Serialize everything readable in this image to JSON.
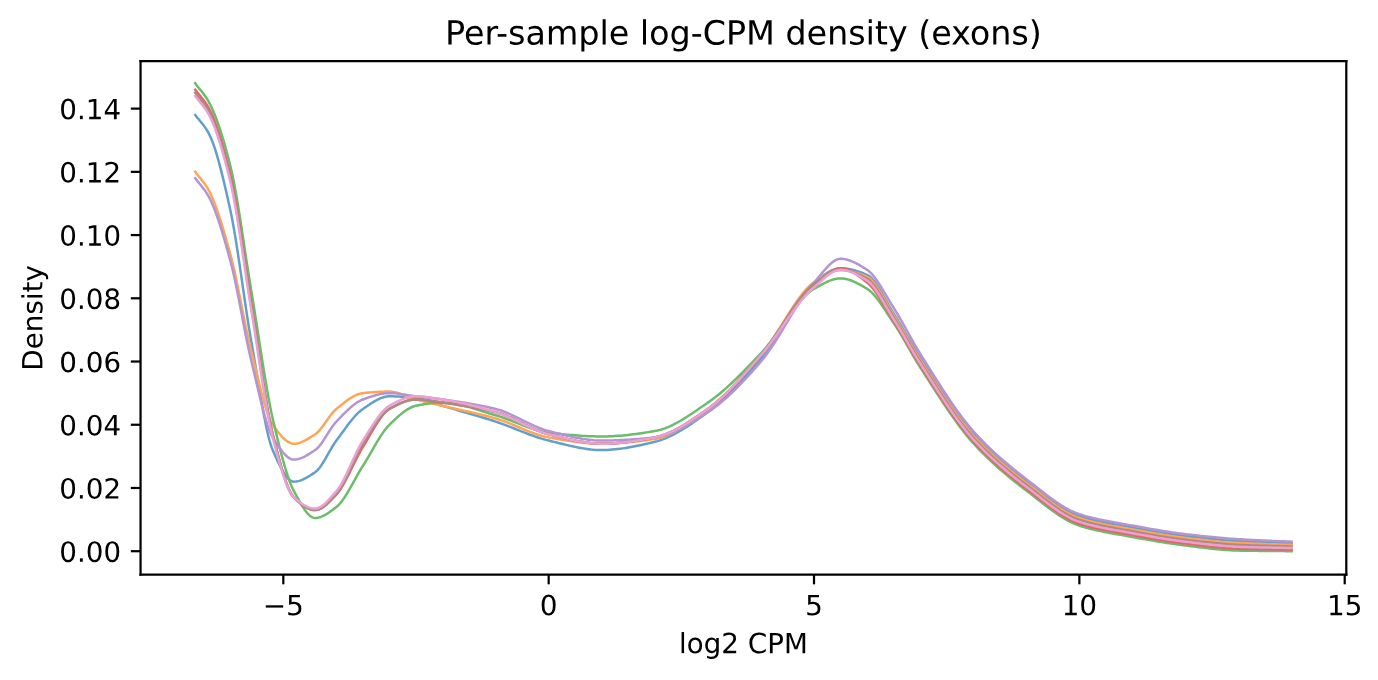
{
  "chart_data": {
    "type": "line",
    "title": "Per-sample log-CPM density (exons)",
    "xlabel": "log2 CPM",
    "ylabel": "Density",
    "x": [
      -6.66,
      -6.4,
      -6.0,
      -5.6,
      -5.2,
      -4.8,
      -4.4,
      -4.0,
      -3.5,
      -3.0,
      -2.5,
      -2.0,
      -1.0,
      0,
      1,
      2,
      3,
      4,
      5,
      5.5,
      6,
      6.5,
      7,
      8,
      9,
      10,
      11,
      12,
      13,
      14
    ],
    "series": [
      {
        "color": "#629fca",
        "values": [
          0.138,
          0.132,
          0.108,
          0.066,
          0.032,
          0.022,
          0.025,
          0.035,
          0.045,
          0.049,
          0.0485,
          0.046,
          0.041,
          0.035,
          0.032,
          0.0346,
          0.044,
          0.061,
          0.085,
          0.0895,
          0.0874,
          0.0752,
          0.0612,
          0.0372,
          0.0222,
          0.0111,
          0.0075,
          0.0048,
          0.0032,
          0.0025
        ]
      },
      {
        "color": "#ffa556",
        "values": [
          0.12,
          0.114,
          0.094,
          0.063,
          0.04,
          0.034,
          0.037,
          0.045,
          0.05,
          0.0505,
          0.048,
          0.046,
          0.042,
          0.036,
          0.034,
          0.0355,
          0.045,
          0.062,
          0.085,
          0.089,
          0.0868,
          0.0746,
          0.0606,
          0.0366,
          0.0216,
          0.0105,
          0.0069,
          0.0042,
          0.0026,
          0.002
        ]
      },
      {
        "color": "#6bbc6b",
        "values": [
          0.148,
          0.142,
          0.122,
          0.082,
          0.042,
          0.019,
          0.0105,
          0.014,
          0.027,
          0.04,
          0.046,
          0.047,
          0.043,
          0.0375,
          0.0363,
          0.038,
          0.047,
          0.0626,
          0.083,
          0.0863,
          0.083,
          0.0722,
          0.0582,
          0.0342,
          0.0192,
          0.0081,
          0.0045,
          0.0018,
          0.0002,
          0.0
        ]
      },
      {
        "color": "#e26768",
        "values": [
          0.146,
          0.14,
          0.119,
          0.078,
          0.037,
          0.017,
          0.013,
          0.018,
          0.033,
          0.045,
          0.048,
          0.047,
          0.044,
          0.037,
          0.034,
          0.036,
          0.045,
          0.062,
          0.084,
          0.0895,
          0.085,
          0.0728,
          0.0588,
          0.0348,
          0.0198,
          0.0087,
          0.0051,
          0.0024,
          0.0008,
          0.0005
        ]
      },
      {
        "color": "#b495d1",
        "values": [
          0.118,
          0.112,
          0.092,
          0.06,
          0.036,
          0.029,
          0.032,
          0.041,
          0.048,
          0.05,
          0.049,
          0.048,
          0.045,
          0.038,
          0.035,
          0.036,
          0.044,
          0.06,
          0.085,
          0.0925,
          0.089,
          0.077,
          0.0625,
          0.038,
          0.0228,
          0.0117,
          0.0081,
          0.0054,
          0.0038,
          0.003
        ]
      },
      {
        "color": "#ae8981",
        "values": [
          0.145,
          0.139,
          0.118,
          0.077,
          0.037,
          0.017,
          0.013,
          0.018,
          0.034,
          0.045,
          0.048,
          0.047,
          0.044,
          0.037,
          0.034,
          0.036,
          0.045,
          0.062,
          0.0845,
          0.089,
          0.0862,
          0.074,
          0.06,
          0.036,
          0.021,
          0.0099,
          0.0063,
          0.0036,
          0.002,
          0.0015
        ]
      },
      {
        "color": "#eba0d4",
        "values": [
          0.144,
          0.138,
          0.117,
          0.076,
          0.036,
          0.017,
          0.0135,
          0.019,
          0.035,
          0.046,
          0.049,
          0.048,
          0.044,
          0.037,
          0.034,
          0.036,
          0.045,
          0.062,
          0.0835,
          0.089,
          0.0856,
          0.0734,
          0.0594,
          0.0354,
          0.0204,
          0.0093,
          0.0057,
          0.003,
          0.0014,
          0.001
        ]
      }
    ],
    "xlim": [
      -7.69,
      15.03
    ],
    "ylim": [
      -0.0074,
      0.155
    ],
    "xticks": [
      {
        "value": -5,
        "label": "−5"
      },
      0,
      5,
      10,
      15
    ],
    "yticks": [
      {
        "value": 0,
        "label": "0.00"
      },
      {
        "value": 0.02,
        "label": "0.02"
      },
      {
        "value": 0.04,
        "label": "0.04"
      },
      {
        "value": 0.06,
        "label": "0.06"
      },
      {
        "value": 0.08,
        "label": "0.08"
      },
      {
        "value": 0.1,
        "label": "0.10"
      },
      {
        "value": 0.12,
        "label": "0.12"
      },
      {
        "value": 0.14,
        "label": "0.14"
      }
    ],
    "grid": false,
    "legend": false
  }
}
